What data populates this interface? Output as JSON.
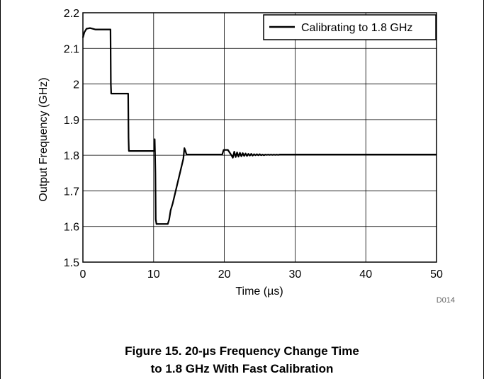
{
  "caption": {
    "line1": "Figure 15. 20-µs Frequency Change Time",
    "line2": "to 1.8 GHz With Fast Calibration"
  },
  "code": "D014",
  "chart_data": {
    "type": "line",
    "xlabel": "Time (µs)",
    "ylabel": "Output Frequency (GHz)",
    "xlim": [
      0,
      50
    ],
    "ylim": [
      1.5,
      2.2
    ],
    "xticks": [
      0,
      10,
      20,
      30,
      40,
      50
    ],
    "yticks": [
      1.5,
      1.6,
      1.7,
      1.8,
      1.9,
      2.0,
      2.1,
      2.2
    ],
    "xtick_labels": [
      "0",
      "10",
      "20",
      "30",
      "40",
      "50"
    ],
    "ytick_labels": [
      "1.5",
      "1.6",
      "1.7",
      "1.8",
      "1.9",
      "2",
      "2.1",
      "2.2"
    ],
    "grid": true,
    "legend_position": "top-right",
    "series": [
      {
        "name": "Calibrating to 1.8 GHz",
        "color": "#000000",
        "x": [
          0,
          0.2,
          0.5,
          1.0,
          1.8,
          2.0,
          3.9,
          3.95,
          4.0,
          4.05,
          6.4,
          6.45,
          6.5,
          6.55,
          10.1,
          10.15,
          10.2,
          10.25,
          10.3,
          10.4,
          10.55,
          10.6,
          12.0,
          12.2,
          12.4,
          12.7,
          13.0,
          13.3,
          13.6,
          13.9,
          14.2,
          14.35,
          14.5,
          14.65,
          14.8,
          15.0,
          19.7,
          19.9,
          20.0,
          20.5,
          21.0,
          21.2,
          21.4,
          21.6,
          21.8,
          22.0,
          22.2,
          22.4,
          22.6,
          22.8,
          23.0,
          23.2,
          23.4,
          23.6,
          23.8,
          24.0,
          24.2,
          24.4,
          24.6,
          24.8,
          25.0,
          25.2,
          25.4,
          25.6,
          25.8,
          26.0,
          26.2,
          26.4,
          26.6,
          26.8,
          27.0,
          27.2,
          27.4,
          27.6,
          27.8,
          28.0,
          28.3,
          28.6,
          29.0,
          30.0,
          50.0
        ],
        "y": [
          2.13,
          2.145,
          2.155,
          2.157,
          2.153,
          2.153,
          2.153,
          2.0,
          1.973,
          1.973,
          1.973,
          1.85,
          1.812,
          1.812,
          1.812,
          1.845,
          1.8,
          1.75,
          1.62,
          1.607,
          1.607,
          1.607,
          1.607,
          1.62,
          1.645,
          1.665,
          1.69,
          1.715,
          1.74,
          1.765,
          1.79,
          1.82,
          1.812,
          1.802,
          1.802,
          1.802,
          1.802,
          1.815,
          1.815,
          1.815,
          1.8,
          1.793,
          1.81,
          1.795,
          1.808,
          1.796,
          1.807,
          1.797,
          1.806,
          1.798,
          1.805,
          1.798,
          1.804,
          1.799,
          1.804,
          1.799,
          1.803,
          1.8,
          1.803,
          1.8,
          1.803,
          1.8,
          1.802,
          1.8,
          1.802,
          1.801,
          1.802,
          1.801,
          1.802,
          1.801,
          1.802,
          1.801,
          1.802,
          1.801,
          1.802,
          1.802,
          1.802,
          1.802,
          1.802,
          1.802,
          1.802
        ]
      }
    ]
  }
}
